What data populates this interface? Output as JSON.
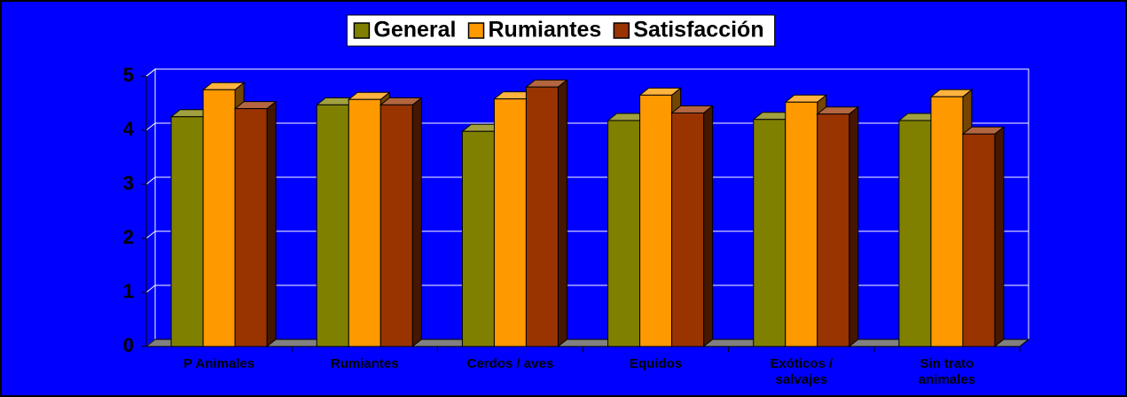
{
  "chart_data": {
    "type": "bar3d",
    "categories": [
      "P Animales",
      "Rumiantes",
      "Cerdos / aves",
      "Equidos",
      "Exóticos /\nsalvajes",
      "Sin trato\nanimales"
    ],
    "series": [
      {
        "name": "General",
        "color": "#808000",
        "values": [
          4.25,
          4.47,
          3.98,
          4.18,
          4.2,
          4.18
        ]
      },
      {
        "name": "Rumiantes",
        "color": "#ff9900",
        "values": [
          4.75,
          4.57,
          4.58,
          4.65,
          4.52,
          4.62
        ]
      },
      {
        "name": "Satisfacción",
        "color": "#993300",
        "values": [
          4.4,
          4.47,
          4.8,
          4.32,
          4.3,
          3.93
        ]
      }
    ],
    "ylim": [
      0,
      5
    ],
    "yticks": [
      0,
      1,
      2,
      3,
      4,
      5
    ],
    "grid": true,
    "legend": "top"
  }
}
